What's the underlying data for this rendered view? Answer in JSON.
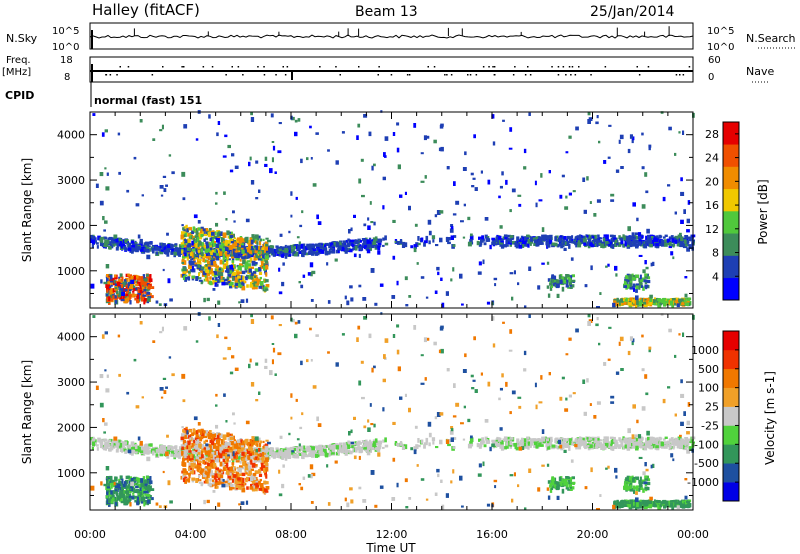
{
  "header": {
    "title": "Halley (fitACF)",
    "beam": "Beam 13",
    "date": "25/Jan/2014"
  },
  "top_panels": {
    "nsky": {
      "label": "N.Sky",
      "ticks": [
        "10^5",
        "10^0"
      ]
    },
    "nsearch": {
      "label": "N.Search",
      "ticks": [
        "10^5",
        "10^0"
      ]
    },
    "freq": {
      "label_line1": "Freq.",
      "label_line2": "[MHz]",
      "ticks": [
        "18",
        "8"
      ]
    },
    "nave": {
      "label": "Nave",
      "ticks": [
        "60",
        "0"
      ]
    },
    "cpid": {
      "label": "CPID",
      "value": "normal (fast) 151"
    }
  },
  "chart_data": [
    {
      "type": "heatmap",
      "title": "",
      "xlabel": "",
      "ylabel": "Slant Range [km]",
      "x_ticks": [
        "00:00",
        "04:00",
        "08:00",
        "12:00",
        "16:00",
        "20:00",
        "00:00"
      ],
      "xlim_hours": [
        0,
        24
      ],
      "y_ticks": [
        1000,
        2000,
        3000,
        4000
      ],
      "ylim": [
        180,
        4500
      ],
      "colorbar": {
        "label": "Power [dB]",
        "ticks": [
          "4",
          "8",
          "12",
          "16",
          "20",
          "24",
          "28"
        ],
        "range": [
          0,
          30
        ],
        "colors": [
          "#0000ff",
          "#1e3fb4",
          "#3c8c5a",
          "#50c83c",
          "#f0c800",
          "#f08c00",
          "#f05000",
          "#e60000"
        ]
      }
    },
    {
      "type": "heatmap",
      "title": "",
      "xlabel": "Time UT",
      "ylabel": "Slant Range [km]",
      "x_ticks": [
        "00:00",
        "04:00",
        "08:00",
        "12:00",
        "16:00",
        "20:00",
        "00:00"
      ],
      "xlim_hours": [
        0,
        24
      ],
      "y_ticks": [
        1000,
        2000,
        3000,
        4000
      ],
      "ylim": [
        180,
        4500
      ],
      "colorbar": {
        "label": "Velocity [m s-1]",
        "ticks": [
          "1000",
          "500",
          "100",
          "25",
          "-25",
          "-100",
          "-500",
          "-1000"
        ],
        "colors": [
          "#0000e6",
          "#1e50a0",
          "#32965a",
          "#50d23c",
          "#c8c8c8",
          "#f0a028",
          "#f07800",
          "#f03200",
          "#e60000"
        ]
      }
    }
  ]
}
